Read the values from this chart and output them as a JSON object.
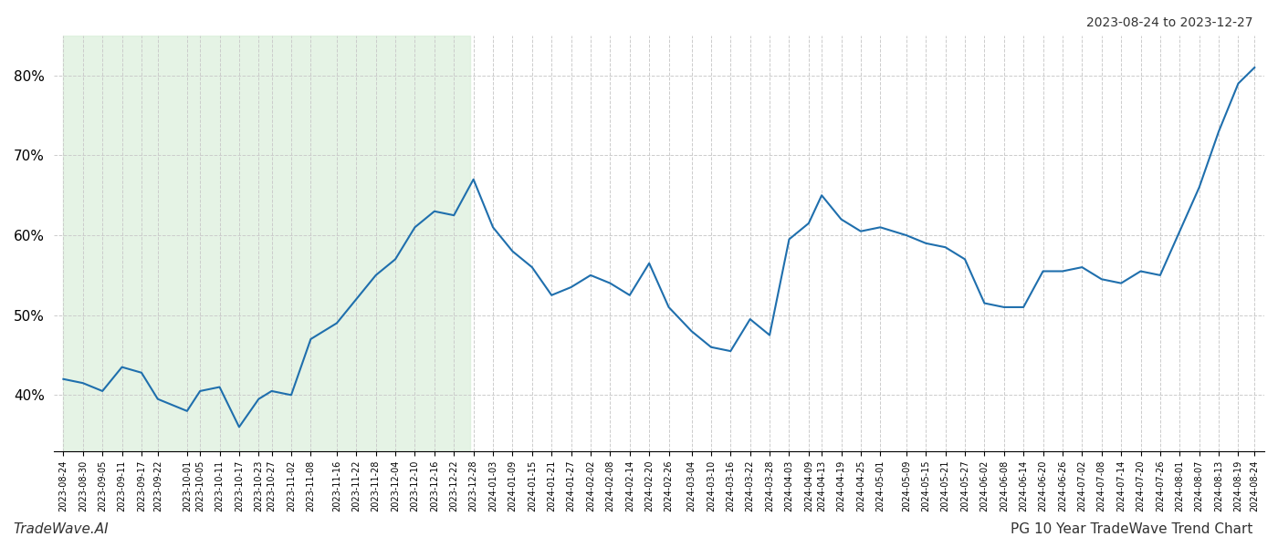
{
  "title_top_right": "2023-08-24 to 2023-12-27",
  "title_bottom_left": "TradeWave.AI",
  "title_bottom_right": "PG 10 Year TradeWave Trend Chart",
  "line_color": "#1f6fad",
  "line_width": 1.5,
  "shading_color": "#d4ecd4",
  "shading_alpha": 0.6,
  "shading_start": "2023-08-24",
  "shading_end": "2023-12-27",
  "background_color": "#ffffff",
  "grid_color": "#cccccc",
  "grid_style": "--",
  "ylim": [
    33,
    85
  ],
  "yticks": [
    40,
    50,
    60,
    70,
    80
  ],
  "x_dates": [
    "2023-08-24",
    "2023-08-30",
    "2023-09-05",
    "2023-09-11",
    "2023-09-17",
    "2023-09-22",
    "2023-10-01",
    "2023-10-05",
    "2023-10-11",
    "2023-10-17",
    "2023-10-23",
    "2023-10-27",
    "2023-11-02",
    "2023-11-08",
    "2023-11-16",
    "2023-11-22",
    "2023-11-28",
    "2023-12-04",
    "2023-12-10",
    "2023-12-16",
    "2023-12-22",
    "2023-12-28",
    "2024-01-03",
    "2024-01-09",
    "2024-01-15",
    "2024-01-21",
    "2024-01-27",
    "2024-02-02",
    "2024-02-08",
    "2024-02-14",
    "2024-02-20",
    "2024-02-26",
    "2024-03-04",
    "2024-03-10",
    "2024-03-16",
    "2024-03-22",
    "2024-03-28",
    "2024-04-03",
    "2024-04-09",
    "2024-04-13",
    "2024-04-19",
    "2024-04-25",
    "2024-05-01",
    "2024-05-09",
    "2024-05-15",
    "2024-05-21",
    "2024-05-27",
    "2024-06-02",
    "2024-06-08",
    "2024-06-14",
    "2024-06-20",
    "2024-06-26",
    "2024-07-02",
    "2024-07-08",
    "2024-07-14",
    "2024-07-20",
    "2024-07-26",
    "2024-08-01",
    "2024-08-07",
    "2024-08-13",
    "2024-08-19",
    "2024-08-24"
  ],
  "y_values": [
    42.0,
    41.5,
    40.5,
    43.5,
    42.8,
    39.5,
    38.0,
    40.5,
    41.0,
    36.0,
    39.5,
    40.5,
    40.0,
    47.0,
    49.0,
    52.0,
    55.0,
    57.0,
    61.0,
    63.0,
    62.5,
    67.0,
    61.0,
    58.0,
    56.0,
    52.5,
    53.5,
    55.0,
    54.0,
    52.5,
    56.5,
    51.0,
    48.0,
    46.0,
    45.5,
    49.5,
    47.5,
    59.5,
    61.5,
    65.0,
    62.0,
    60.5,
    61.0,
    60.0,
    59.0,
    58.5,
    57.0,
    51.5,
    51.0,
    51.0,
    55.5,
    55.5,
    56.0,
    54.5,
    54.0,
    55.5,
    55.0,
    60.5,
    66.0,
    73.0,
    79.0,
    81.0
  ],
  "xtick_dates": [
    "2023-08-24",
    "2023-08-30",
    "2023-09-05",
    "2023-09-11",
    "2023-09-17",
    "2023-09-22",
    "2023-10-01",
    "2023-10-05",
    "2023-10-11",
    "2023-10-17",
    "2023-10-23",
    "2023-10-27",
    "2023-11-02",
    "2023-11-08",
    "2023-11-16",
    "2023-11-22",
    "2023-11-28",
    "2023-12-04",
    "2023-12-10",
    "2023-12-16",
    "2023-12-22",
    "2023-12-28",
    "2024-01-03",
    "2024-01-09",
    "2024-01-15",
    "2024-01-21",
    "2024-01-27",
    "2024-02-02",
    "2024-02-08",
    "2024-02-14",
    "2024-02-20",
    "2024-02-26",
    "2024-03-04",
    "2024-03-10",
    "2024-03-16",
    "2024-03-22",
    "2024-03-28",
    "2024-04-03",
    "2024-04-09",
    "2024-04-13",
    "2024-04-19",
    "2024-04-25",
    "2024-05-01",
    "2024-05-09",
    "2024-05-15",
    "2024-05-21",
    "2024-05-27",
    "2024-06-02",
    "2024-06-08",
    "2024-06-14",
    "2024-06-20",
    "2024-06-26",
    "2024-07-02",
    "2024-07-08",
    "2024-07-14",
    "2024-07-20",
    "2024-07-26",
    "2024-08-01",
    "2024-08-07",
    "2024-08-13",
    "2024-08-19",
    "2024-08-24"
  ]
}
